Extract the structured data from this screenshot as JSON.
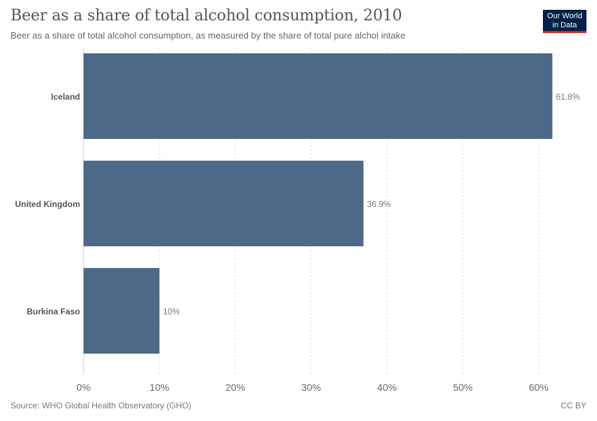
{
  "header": {
    "title": "Beer as a share of total alcohol consumption, 2010",
    "subtitle": "Beer as a share of total alcohol consumption, as measured by the share of total pure alchol intake"
  },
  "logo": {
    "line1": "Our World",
    "line2": "in Data",
    "bg_color": "#002147",
    "accent_color": "#ce261e"
  },
  "footer": {
    "source": "Source: WHO Global Health Observatory (GHO)",
    "license": "CC BY"
  },
  "chart_data": {
    "type": "bar",
    "orientation": "horizontal",
    "title": "Beer as a share of total alcohol consumption, 2010",
    "categories": [
      "Iceland",
      "United Kingdom",
      "Burkina Faso"
    ],
    "values": [
      61.8,
      36.9,
      10
    ],
    "value_labels": [
      "61.8%",
      "36.9%",
      "10%"
    ],
    "xlim": [
      0,
      60
    ],
    "xticks": [
      "0%",
      "10%",
      "20%",
      "30%",
      "40%",
      "50%",
      "60%"
    ],
    "grid": true,
    "bar_color": "#4c6a88"
  }
}
